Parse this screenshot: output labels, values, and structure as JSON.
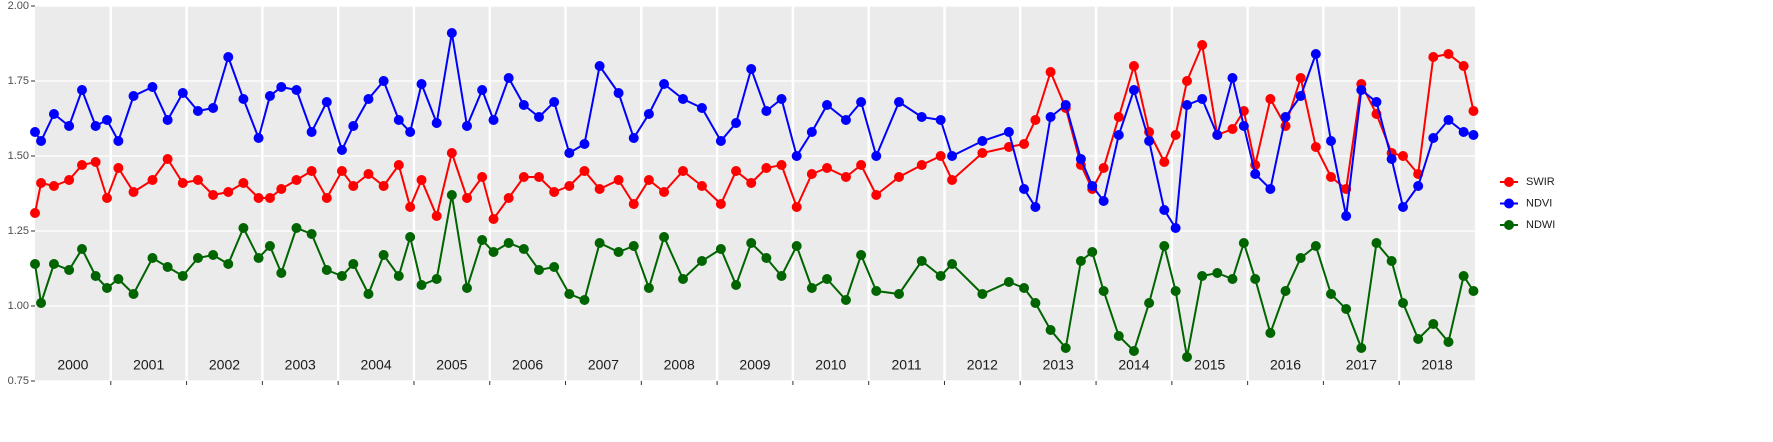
{
  "chart_data": {
    "type": "line",
    "x": [
      2000.0,
      2000.08,
      2000.25,
      2000.45,
      2000.62,
      2000.8,
      2000.95,
      2001.1,
      2001.3,
      2001.55,
      2001.75,
      2001.95,
      2002.15,
      2002.35,
      2002.55,
      2002.75,
      2002.95,
      2003.1,
      2003.25,
      2003.45,
      2003.65,
      2003.85,
      2004.05,
      2004.2,
      2004.4,
      2004.6,
      2004.8,
      2004.95,
      2005.1,
      2005.3,
      2005.5,
      2005.7,
      2005.9,
      2006.05,
      2006.25,
      2006.45,
      2006.65,
      2006.85,
      2007.05,
      2007.25,
      2007.45,
      2007.7,
      2007.9,
      2008.1,
      2008.3,
      2008.55,
      2008.8,
      2009.05,
      2009.25,
      2009.45,
      2009.65,
      2009.85,
      2010.05,
      2010.25,
      2010.45,
      2010.7,
      2010.9,
      2011.1,
      2011.4,
      2011.7,
      2011.95,
      2012.1,
      2012.5,
      2012.85,
      2013.05,
      2013.2,
      2013.4,
      2013.6,
      2013.8,
      2013.95,
      2014.1,
      2014.3,
      2014.5,
      2014.7,
      2014.9,
      2015.05,
      2015.2,
      2015.4,
      2015.6,
      2015.8,
      2015.95,
      2016.1,
      2016.3,
      2016.5,
      2016.7,
      2016.9,
      2017.1,
      2017.3,
      2017.5,
      2017.7,
      2017.9,
      2018.05,
      2018.25,
      2018.45,
      2018.65,
      2018.85,
      2018.98
    ],
    "series": [
      {
        "name": "SWIR",
        "color": "#ff0000",
        "values": [
          1.31,
          1.41,
          1.4,
          1.42,
          1.47,
          1.48,
          1.36,
          1.46,
          1.38,
          1.42,
          1.49,
          1.41,
          1.42,
          1.37,
          1.38,
          1.41,
          1.36,
          1.36,
          1.39,
          1.42,
          1.45,
          1.36,
          1.45,
          1.4,
          1.44,
          1.4,
          1.47,
          1.33,
          1.42,
          1.3,
          1.51,
          1.36,
          1.43,
          1.29,
          1.36,
          1.43,
          1.43,
          1.38,
          1.4,
          1.45,
          1.39,
          1.42,
          1.34,
          1.42,
          1.38,
          1.45,
          1.4,
          1.34,
          1.45,
          1.41,
          1.46,
          1.47,
          1.33,
          1.44,
          1.46,
          1.43,
          1.47,
          1.37,
          1.43,
          1.47,
          1.5,
          1.42,
          1.51,
          1.53,
          1.54,
          1.62,
          1.78,
          1.66,
          1.47,
          1.39,
          1.46,
          1.63,
          1.8,
          1.58,
          1.48,
          1.57,
          1.75,
          1.87,
          1.57,
          1.59,
          1.65,
          1.47,
          1.69,
          1.6,
          1.76,
          1.53,
          1.43,
          1.39,
          1.74,
          1.64,
          1.51,
          1.5,
          1.44,
          1.83,
          1.84,
          1.8,
          1.65
        ]
      },
      {
        "name": "NDVI",
        "color": "#0000ff",
        "values": [
          1.58,
          1.55,
          1.64,
          1.6,
          1.72,
          1.6,
          1.62,
          1.55,
          1.7,
          1.73,
          1.62,
          1.71,
          1.65,
          1.66,
          1.83,
          1.69,
          1.56,
          1.7,
          1.73,
          1.72,
          1.58,
          1.68,
          1.52,
          1.6,
          1.69,
          1.75,
          1.62,
          1.58,
          1.74,
          1.61,
          1.91,
          1.6,
          1.72,
          1.62,
          1.76,
          1.67,
          1.63,
          1.68,
          1.51,
          1.54,
          1.8,
          1.71,
          1.56,
          1.64,
          1.74,
          1.69,
          1.66,
          1.55,
          1.61,
          1.79,
          1.65,
          1.69,
          1.5,
          1.58,
          1.67,
          1.62,
          1.68,
          1.5,
          1.68,
          1.63,
          1.62,
          1.5,
          1.55,
          1.58,
          1.39,
          1.33,
          1.63,
          1.67,
          1.49,
          1.4,
          1.35,
          1.57,
          1.72,
          1.55,
          1.32,
          1.26,
          1.67,
          1.69,
          1.57,
          1.76,
          1.6,
          1.44,
          1.39,
          1.63,
          1.7,
          1.84,
          1.55,
          1.3,
          1.72,
          1.68,
          1.49,
          1.33,
          1.4,
          1.56,
          1.62,
          1.58,
          1.57
        ]
      },
      {
        "name": "NDWI",
        "color": "#006400",
        "values": [
          1.14,
          1.01,
          1.14,
          1.12,
          1.19,
          1.1,
          1.06,
          1.09,
          1.04,
          1.16,
          1.13,
          1.1,
          1.16,
          1.17,
          1.14,
          1.26,
          1.16,
          1.2,
          1.11,
          1.26,
          1.24,
          1.12,
          1.1,
          1.14,
          1.04,
          1.17,
          1.1,
          1.23,
          1.07,
          1.09,
          1.37,
          1.06,
          1.22,
          1.18,
          1.21,
          1.19,
          1.12,
          1.13,
          1.04,
          1.02,
          1.21,
          1.18,
          1.2,
          1.06,
          1.23,
          1.09,
          1.15,
          1.19,
          1.07,
          1.21,
          1.16,
          1.1,
          1.2,
          1.06,
          1.09,
          1.02,
          1.17,
          1.05,
          1.04,
          1.15,
          1.1,
          1.14,
          1.04,
          1.08,
          1.06,
          1.01,
          0.92,
          0.86,
          1.15,
          1.18,
          1.05,
          0.9,
          0.85,
          1.01,
          1.2,
          1.05,
          0.83,
          1.1,
          1.11,
          1.09,
          1.21,
          1.09,
          0.91,
          1.05,
          1.16,
          1.2,
          1.04,
          0.99,
          0.86,
          1.21,
          1.15,
          1.01,
          0.89,
          0.94,
          0.88,
          1.1,
          1.05
        ]
      }
    ],
    "xlim": [
      2000,
      2019
    ],
    "xticks": [
      2001,
      2002,
      2003,
      2004,
      2005,
      2006,
      2007,
      2008,
      2009,
      2010,
      2011,
      2012,
      2013,
      2014,
      2015,
      2016,
      2017,
      2018
    ],
    "year_labels": [
      2000,
      2001,
      2002,
      2003,
      2004,
      2005,
      2006,
      2007,
      2008,
      2009,
      2010,
      2011,
      2012,
      2013,
      2014,
      2015,
      2016,
      2017,
      2018
    ],
    "ylim": [
      0.75,
      2.0
    ],
    "yticks": [
      {
        "value": 0.75,
        "label": "0.75"
      },
      {
        "value": 1.0,
        "label": "1.00"
      },
      {
        "value": 1.25,
        "label": "1.25"
      },
      {
        "value": 1.5,
        "label": "1.50"
      },
      {
        "value": 1.75,
        "label": "1.75"
      },
      {
        "value": 2.0,
        "label": "2.00"
      }
    ],
    "grid": true,
    "legend": "right"
  }
}
